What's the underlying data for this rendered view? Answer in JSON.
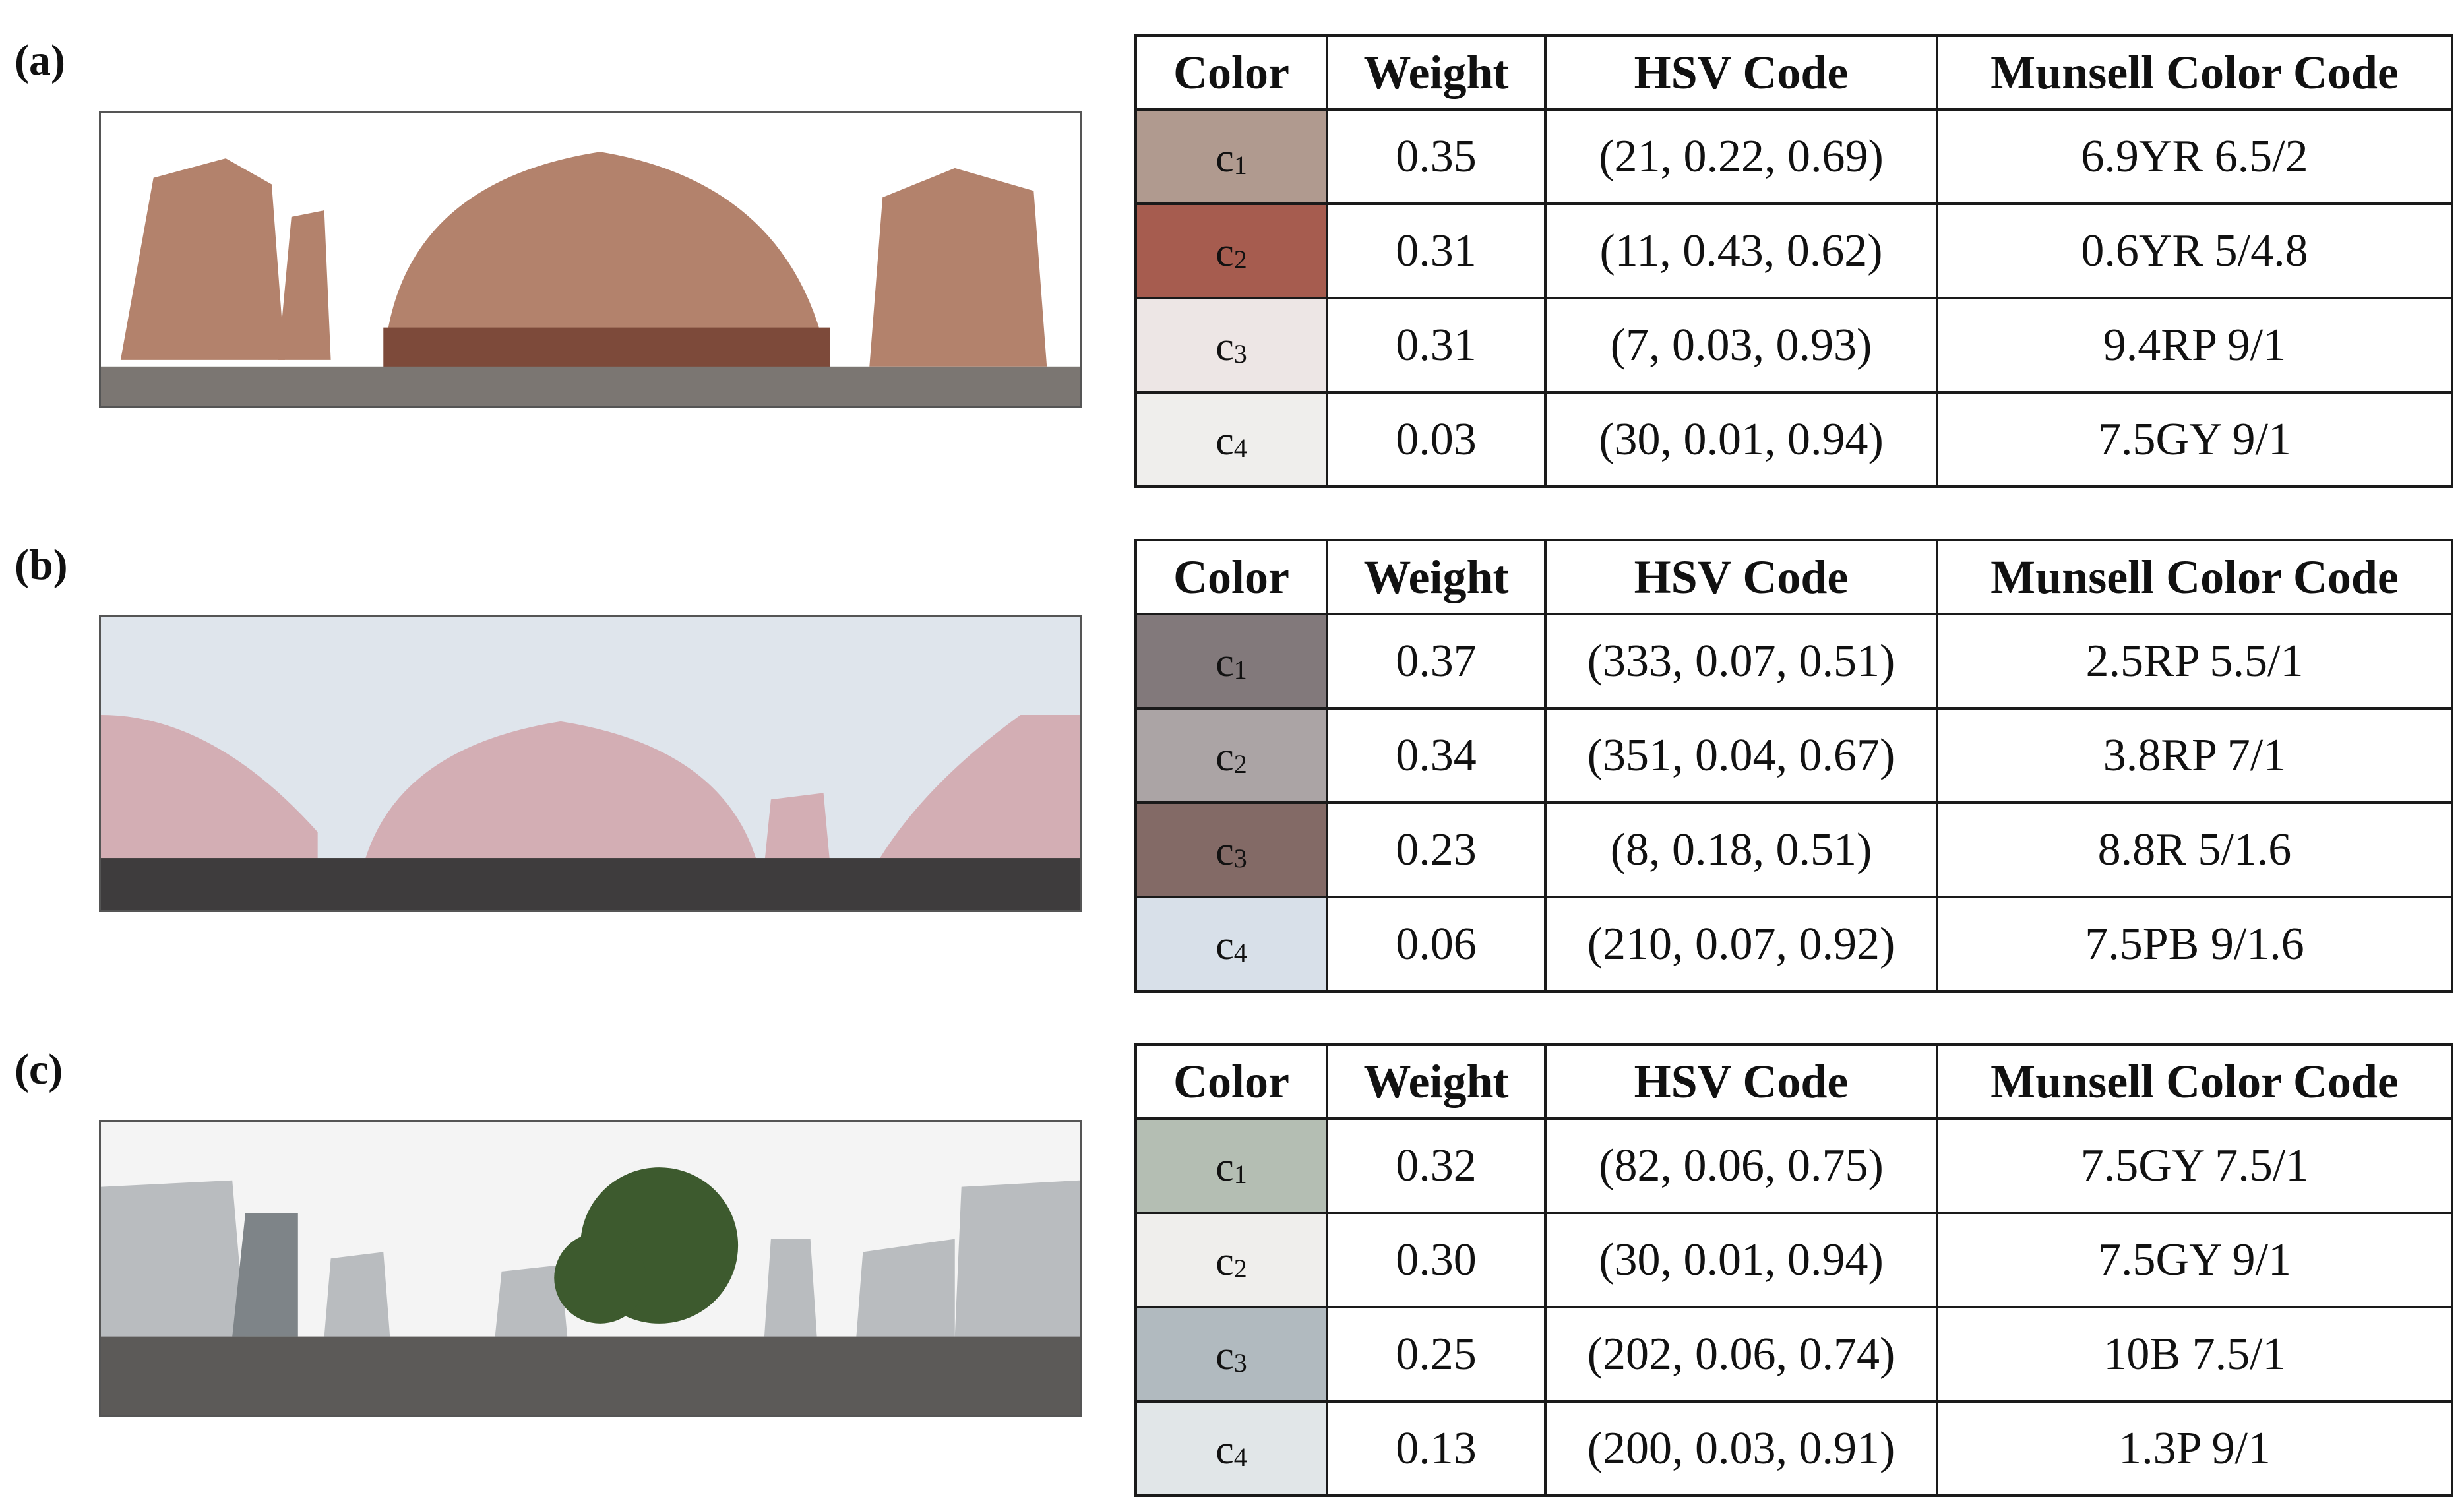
{
  "panels": [
    {
      "label": "(a)",
      "header": {
        "color": "Color",
        "weight": "Weight",
        "hsv": "HSV Code",
        "munsell": "Munsell Color Code"
      },
      "rows": [
        {
          "name": "c",
          "sub": "1",
          "swatch": "#b09a8f",
          "weight": "0.35",
          "hsv": "(21, 0.22, 0.69)",
          "munsell": "6.9YR 6.5/2"
        },
        {
          "name": "c",
          "sub": "2",
          "swatch": "#a65c4f",
          "weight": "0.31",
          "hsv": "(11, 0.43, 0.62)",
          "munsell": "0.6YR 5/4.8"
        },
        {
          "name": "c",
          "sub": "3",
          "swatch": "#ede6e5",
          "weight": "0.31",
          "hsv": "(7, 0.03, 0.93)",
          "munsell": "9.4RP 9/1"
        },
        {
          "name": "c",
          "sub": "4",
          "swatch": "#efeeec",
          "weight": "0.03",
          "hsv": "(30, 0.01, 0.94)",
          "munsell": "7.5GY 9/1"
        }
      ],
      "scene": {
        "sky": "#ffffff",
        "building": "#b3826c",
        "building_dark": "#7d4a3a",
        "ground": "#7b7672"
      }
    },
    {
      "label": "(b)",
      "header": {
        "color": "Color",
        "weight": "Weight",
        "hsv": "HSV Code",
        "munsell": "Munsell Color Code"
      },
      "rows": [
        {
          "name": "c",
          "sub": "1",
          "swatch": "#82797b",
          "weight": "0.37",
          "hsv": "(333, 0.07, 0.51)",
          "munsell": "2.5RP 5.5/1"
        },
        {
          "name": "c",
          "sub": "2",
          "swatch": "#aba4a5",
          "weight": "0.34",
          "hsv": "(351, 0.04, 0.67)",
          "munsell": "3.8RP 7/1"
        },
        {
          "name": "c",
          "sub": "3",
          "swatch": "#836a66",
          "weight": "0.23",
          "hsv": "(8, 0.18, 0.51)",
          "munsell": "8.8R 5/1.6"
        },
        {
          "name": "c",
          "sub": "4",
          "swatch": "#d8e0e9",
          "weight": "0.06",
          "hsv": "(210, 0.07, 0.92)",
          "munsell": "7.5PB 9/1.6"
        }
      ],
      "scene": {
        "sky": "#dfe5ec",
        "building": "#d3aeb4",
        "building_dark": "#9c8085",
        "ground": "#3e3c3d"
      }
    },
    {
      "label": "(c)",
      "header": {
        "color": "Color",
        "weight": "Weight",
        "hsv": "HSV Code",
        "munsell": "Munsell Color Code"
      },
      "rows": [
        {
          "name": "c",
          "sub": "1",
          "swatch": "#b4beb3",
          "weight": "0.32",
          "hsv": "(82, 0.06, 0.75)",
          "munsell": "7.5GY 7.5/1"
        },
        {
          "name": "c",
          "sub": "2",
          "swatch": "#efeeec",
          "weight": "0.30",
          "hsv": "(30, 0.01, 0.94)",
          "munsell": "7.5GY 9/1"
        },
        {
          "name": "c",
          "sub": "3",
          "swatch": "#b1babf",
          "weight": "0.25",
          "hsv": "(202, 0.06, 0.74)",
          "munsell": "10B 7.5/1"
        },
        {
          "name": "c",
          "sub": "4",
          "swatch": "#e1e6e8",
          "weight": "0.13",
          "hsv": "(200, 0.03, 0.91)",
          "munsell": "1.3P 9/1"
        }
      ],
      "scene": {
        "sky": "#f4f4f4",
        "building": "#b9bcbf",
        "building_dark": "#7e8488",
        "ground": "#5c5a58",
        "tree": "#3d5a2e"
      }
    }
  ]
}
